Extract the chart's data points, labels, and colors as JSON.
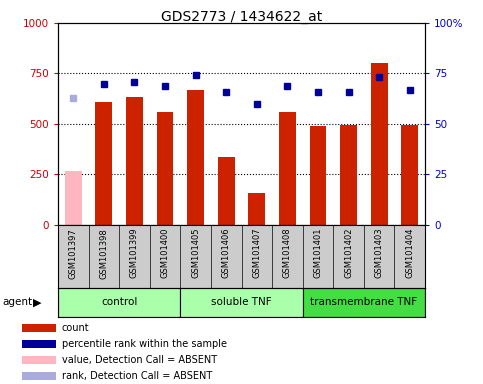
{
  "title": "GDS2773 / 1434622_at",
  "samples": [
    "GSM101397",
    "GSM101398",
    "GSM101399",
    "GSM101400",
    "GSM101405",
    "GSM101406",
    "GSM101407",
    "GSM101408",
    "GSM101401",
    "GSM101402",
    "GSM101403",
    "GSM101404"
  ],
  "bar_values": [
    265,
    610,
    635,
    560,
    670,
    335,
    155,
    560,
    490,
    495,
    800,
    495
  ],
  "bar_colors": [
    "#ffb6c1",
    "#cc2200",
    "#cc2200",
    "#cc2200",
    "#cc2200",
    "#cc2200",
    "#cc2200",
    "#cc2200",
    "#cc2200",
    "#cc2200",
    "#cc2200",
    "#cc2200"
  ],
  "dot_values": [
    63,
    70,
    71,
    69,
    74,
    66,
    60,
    69,
    66,
    66,
    73,
    67
  ],
  "dot_absent": [
    true,
    false,
    false,
    false,
    false,
    false,
    false,
    false,
    false,
    false,
    false,
    false
  ],
  "groups": [
    {
      "label": "control",
      "start": 0,
      "end": 4,
      "color": "#aaffaa"
    },
    {
      "label": "soluble TNF",
      "start": 4,
      "end": 8,
      "color": "#aaffaa"
    },
    {
      "label": "transmembrane TNF",
      "start": 8,
      "end": 12,
      "color": "#44dd44"
    }
  ],
  "ylim_left": [
    0,
    1000
  ],
  "ylim_right": [
    0,
    100
  ],
  "yticks_left": [
    0,
    250,
    500,
    750,
    1000
  ],
  "yticks_right": [
    0,
    25,
    50,
    75,
    100
  ],
  "left_tick_color": "#cc0000",
  "right_tick_color": "#0000cc",
  "bar_width": 0.55,
  "dot_color_normal": "#000099",
  "dot_color_absent": "#aaaadd",
  "legend_items": [
    {
      "label": "count",
      "color": "#cc2200"
    },
    {
      "label": "percentile rank within the sample",
      "color": "#000099"
    },
    {
      "label": "value, Detection Call = ABSENT",
      "color": "#ffb6c1"
    },
    {
      "label": "rank, Detection Call = ABSENT",
      "color": "#aaaadd"
    }
  ],
  "agent_label": "agent",
  "background_color": "#ffffff",
  "plot_bg_color": "#ffffff",
  "xlabel_area_color": "#cccccc"
}
